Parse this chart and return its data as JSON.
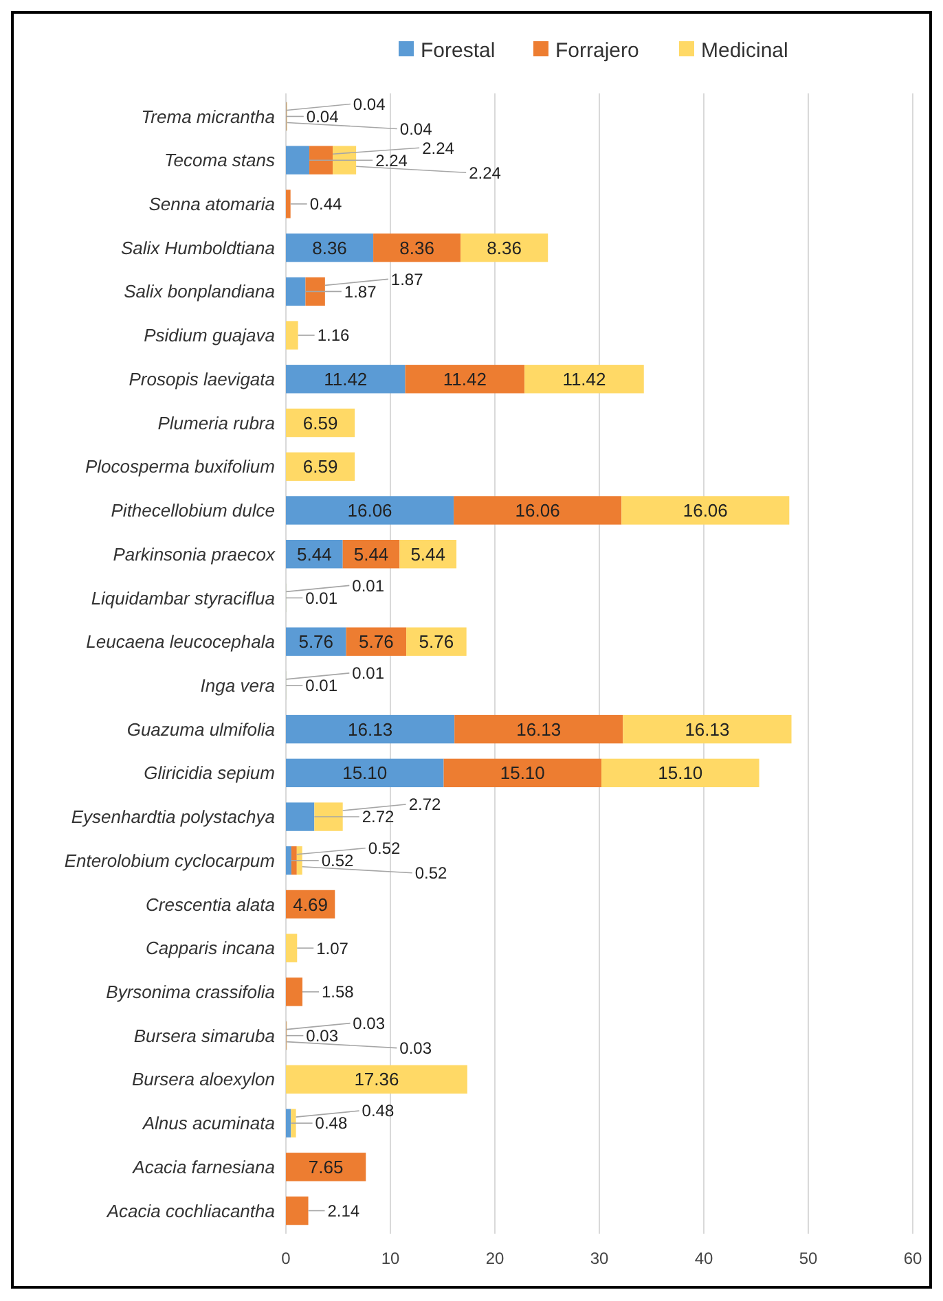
{
  "chart_data": {
    "type": "bar",
    "orientation": "horizontal",
    "stacked": true,
    "categories": [
      "Trema micrantha",
      "Tecoma stans",
      "Senna atomaria",
      "Salix Humboldtiana",
      "Salix bonplandiana",
      "Psidium guajava",
      "Prosopis laevigata",
      "Plumeria rubra",
      "Plocosperma buxifolium",
      "Pithecellobium dulce",
      "Parkinsonia praecox",
      "Liquidambar styraciflua",
      "Leucaena leucocephala",
      "Inga vera",
      "Guazuma ulmifolia",
      "Gliricidia sepium",
      "Eysenhardtia polystachya",
      "Enterolobium cyclocarpum",
      "Crescentia alata",
      "Capparis incana",
      "Byrsonima crassifolia",
      "Bursera simaruba",
      "Bursera aloexylon",
      "Alnus acuminata",
      "Acacia farnesiana",
      "Acacia cochliacantha"
    ],
    "series": [
      {
        "name": "Forestal",
        "color": "#5b9bd5",
        "values": [
          0.04,
          2.24,
          null,
          8.36,
          1.87,
          null,
          11.42,
          null,
          null,
          16.06,
          5.44,
          0.01,
          5.76,
          0.01,
          16.13,
          15.1,
          2.72,
          0.52,
          null,
          null,
          null,
          0.03,
          null,
          0.48,
          null,
          null
        ],
        "value_labels": [
          "0.04",
          "2.24",
          null,
          "8.36",
          "1.87",
          null,
          "11.42",
          null,
          null,
          "16.06",
          "5.44",
          "0.01",
          "5.76",
          "0.01",
          "16.13",
          "15.10",
          "2.72",
          "0.52",
          null,
          null,
          null,
          "0.03",
          null,
          "0.48",
          null,
          null
        ]
      },
      {
        "name": "Forrajero",
        "color": "#ed7d31",
        "values": [
          0.04,
          2.24,
          0.44,
          8.36,
          1.87,
          null,
          11.42,
          null,
          null,
          16.06,
          5.44,
          null,
          5.76,
          null,
          16.13,
          15.1,
          null,
          0.52,
          4.69,
          null,
          1.58,
          0.03,
          null,
          null,
          7.65,
          2.14
        ],
        "value_labels": [
          "0.04",
          "2.24",
          "0.44",
          "8.36",
          "1.87",
          null,
          "11.42",
          null,
          null,
          "16.06",
          "5.44",
          null,
          "5.76",
          null,
          "16.13",
          "15.10",
          null,
          "0.52",
          "4.69",
          null,
          "1.58",
          "0.03",
          null,
          null,
          "7.65",
          "2.14"
        ]
      },
      {
        "name": "Medicinal",
        "color": "#ffd966",
        "values": [
          0.04,
          2.24,
          null,
          8.36,
          null,
          1.16,
          11.42,
          6.59,
          6.59,
          16.06,
          5.44,
          0.01,
          5.76,
          0.01,
          16.13,
          15.1,
          2.72,
          0.52,
          null,
          1.07,
          null,
          0.03,
          17.36,
          0.48,
          null,
          null
        ],
        "value_labels": [
          "0.04",
          "2.24",
          null,
          "8.36",
          null,
          "1.16",
          "11.42",
          "6.59",
          "6.59",
          "16.06",
          "5.44",
          "0.01",
          "5.76",
          "0.01",
          "16.13",
          "15.10",
          "2.72",
          "0.52",
          null,
          "1.07",
          null,
          "0.03",
          "17.36",
          "0.48",
          null,
          null
        ]
      }
    ],
    "xlim": [
      0,
      60
    ],
    "xticks": [
      0,
      10,
      20,
      30,
      40,
      50,
      60
    ],
    "grid": "x",
    "legend": "top"
  }
}
